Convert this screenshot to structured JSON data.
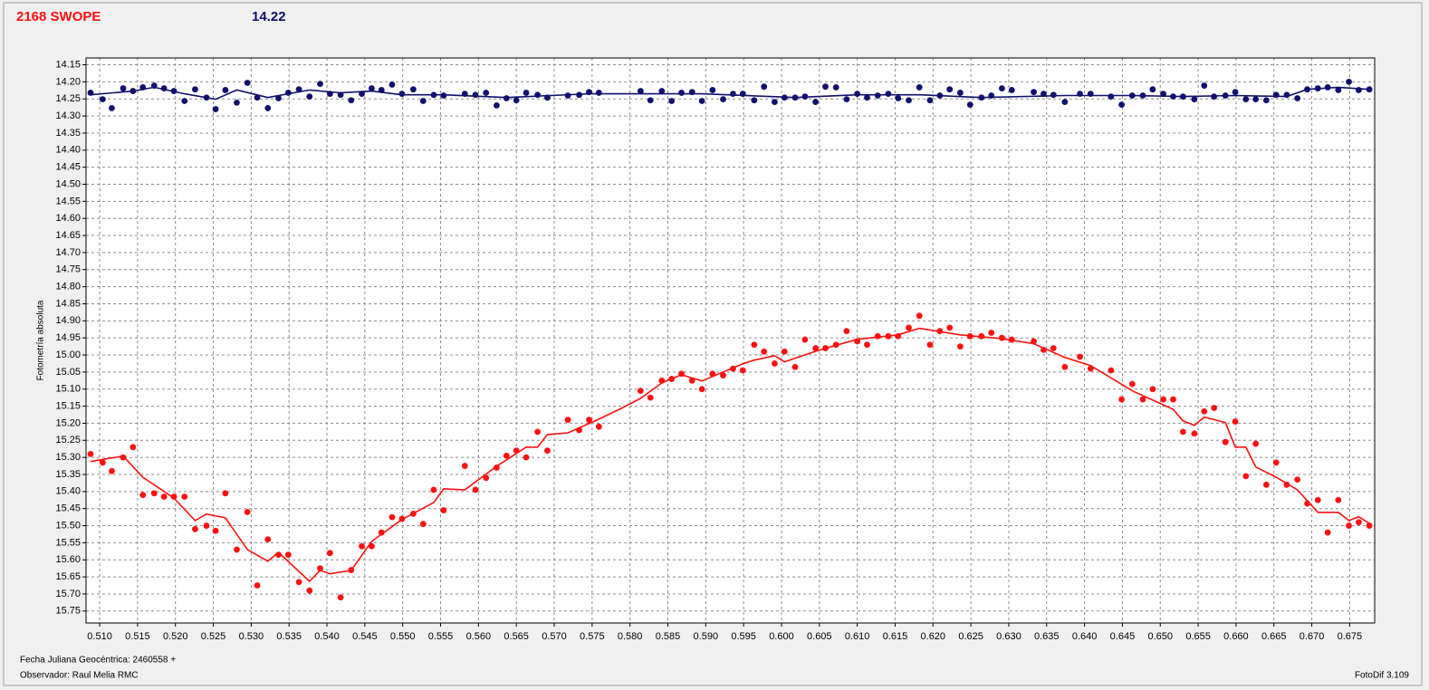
{
  "chart_data": {
    "type": "scatter",
    "title": "2168 SWOPE",
    "header_value": 14.22,
    "y_label": "Fotometría absoluta",
    "x_label": "Fecha Juliana Geocéntrica: 2460558 +",
    "observer": "Observador: Raul Melia RMC",
    "software": "FotoDif 3.109",
    "grid": true,
    "xlim": [
      0.5082,
      0.6783
    ],
    "ylim": [
      15.785,
      14.13
    ],
    "xticks": [
      {
        "value": 0.51,
        "label": "0.510"
      },
      0.515,
      {
        "value": 0.52,
        "label": "0.520"
      },
      0.525,
      {
        "value": 0.53,
        "label": "0.530"
      },
      0.535,
      {
        "value": 0.54,
        "label": "0.540"
      },
      0.545,
      {
        "value": 0.55,
        "label": "0.550"
      },
      0.555,
      {
        "value": 0.56,
        "label": "0.560"
      },
      0.565,
      {
        "value": 0.57,
        "label": "0.570"
      },
      0.575,
      {
        "value": 0.58,
        "label": "0.580"
      },
      0.585,
      {
        "value": 0.59,
        "label": "0.590"
      },
      0.595,
      {
        "value": 0.6,
        "label": "0.600"
      },
      0.605,
      {
        "value": 0.61,
        "label": "0.610"
      },
      0.615,
      {
        "value": 0.62,
        "label": "0.620"
      },
      0.625,
      {
        "value": 0.63,
        "label": "0.630"
      },
      0.635,
      {
        "value": 0.64,
        "label": "0.640"
      },
      0.645,
      {
        "value": 0.65,
        "label": "0.650"
      },
      0.655,
      {
        "value": 0.66,
        "label": "0.660"
      },
      0.665,
      {
        "value": 0.67,
        "label": "0.670"
      },
      0.675
    ],
    "yticks": [
      14.15,
      {
        "value": 14.2,
        "label": "14.20"
      },
      14.25,
      {
        "value": 14.3,
        "label": "14.30"
      },
      14.35,
      {
        "value": 14.4,
        "label": "14.40"
      },
      14.45,
      {
        "value": 14.5,
        "label": "14.50"
      },
      14.55,
      {
        "value": 14.6,
        "label": "14.60"
      },
      14.65,
      {
        "value": 14.7,
        "label": "14.70"
      },
      14.75,
      {
        "value": 14.8,
        "label": "14.80"
      },
      14.85,
      {
        "value": 14.9,
        "label": "14.90"
      },
      14.95,
      {
        "value": 15,
        "label": "15.00"
      },
      15.05,
      {
        "value": 15.1,
        "label": "15.10"
      },
      15.15,
      {
        "value": 15.2,
        "label": "15.20"
      },
      15.25,
      {
        "value": 15.3,
        "label": "15.30"
      },
      15.35,
      {
        "value": 15.4,
        "label": "15.40"
      },
      15.45,
      {
        "value": 15.5,
        "label": "15.50"
      },
      15.55,
      {
        "value": 15.6,
        "label": "15.60"
      },
      15.65,
      {
        "value": 15.7,
        "label": "15.70"
      },
      15.75
    ],
    "x": [
      0.5088,
      0.5104,
      0.5116,
      0.5131,
      0.5144,
      0.5157,
      0.5172,
      0.5185,
      0.5198,
      0.5212,
      0.5226,
      0.5241,
      0.5253,
      0.5266,
      0.5281,
      0.5295,
      0.5308,
      0.5322,
      0.5336,
      0.5349,
      0.5363,
      0.5377,
      0.5391,
      0.5404,
      0.5418,
      0.5432,
      0.5446,
      0.5459,
      0.5472,
      0.5486,
      0.5499,
      0.5514,
      0.5527,
      0.5541,
      0.5554,
      0.5582,
      0.5596,
      0.561,
      0.5624,
      0.5637,
      0.565,
      0.5663,
      0.5678,
      0.5691,
      0.5718,
      0.5733,
      0.5746,
      0.5759,
      0.5814,
      0.5827,
      0.5842,
      0.5855,
      0.5868,
      0.5882,
      0.5895,
      0.5909,
      0.5923,
      0.5936,
      0.5949,
      0.5964,
      0.5977,
      0.5991,
      0.6004,
      0.6018,
      0.6031,
      0.6045,
      0.6058,
      0.6072,
      0.6086,
      0.61,
      0.6113,
      0.6127,
      0.6141,
      0.6154,
      0.6168,
      0.6182,
      0.6196,
      0.6209,
      0.6222,
      0.6236,
      0.6249,
      0.6264,
      0.6277,
      0.6291,
      0.6304,
      0.6333,
      0.6346,
      0.6359,
      0.6374,
      0.6394,
      0.6408,
      0.6435,
      0.6449,
      0.6463,
      0.6477,
      0.649,
      0.6504,
      0.6517,
      0.653,
      0.6545,
      0.6558,
      0.6571,
      0.6586,
      0.6599,
      0.6613,
      0.6626,
      0.664,
      0.6653,
      0.6667,
      0.6681,
      0.6694,
      0.6708,
      0.6721,
      0.6735,
      0.6749,
      0.6762,
      0.6776
    ],
    "series": [
      {
        "style": "points",
        "color": "#10106e",
        "values": [
          14.232,
          14.251,
          14.277,
          14.219,
          14.227,
          14.216,
          14.211,
          14.219,
          14.227,
          14.256,
          14.222,
          14.246,
          14.28,
          14.224,
          14.261,
          14.203,
          14.246,
          14.277,
          14.248,
          14.232,
          14.222,
          14.243,
          14.206,
          14.235,
          14.238,
          14.254,
          14.235,
          14.219,
          14.224,
          14.208,
          14.235,
          14.222,
          14.256,
          14.238,
          14.24,
          14.235,
          14.238,
          14.232,
          14.269,
          14.248,
          14.254,
          14.232,
          14.238,
          14.246,
          14.24,
          14.238,
          14.23,
          14.232,
          14.227,
          14.254,
          14.227,
          14.256,
          14.232,
          14.23,
          14.256,
          14.224,
          14.251,
          14.235,
          14.235,
          14.254,
          14.214,
          14.259,
          14.246,
          14.246,
          14.243,
          14.259,
          14.214,
          14.216,
          14.251,
          14.235,
          14.246,
          14.24,
          14.235,
          14.248,
          14.254,
          14.216,
          14.254,
          14.24,
          14.222,
          14.232,
          14.267,
          14.246,
          14.24,
          14.219,
          14.224,
          14.23,
          14.235,
          14.238,
          14.259,
          14.235,
          14.235,
          14.243,
          14.267,
          14.24,
          14.24,
          14.222,
          14.235,
          14.243,
          14.243,
          14.251,
          14.211,
          14.243,
          14.24,
          14.23,
          14.251,
          14.251,
          14.254,
          14.238,
          14.238,
          14.248,
          14.222,
          14.219,
          14.216,
          14.224,
          14.2,
          14.224,
          14.222
        ]
      },
      {
        "style": "line",
        "color": "#10106e",
        "x": [
          0.5088,
          0.5144,
          0.5172,
          0.5212,
          0.5253,
          0.5281,
          0.5322,
          0.5377,
          0.5418,
          0.5459,
          0.5499,
          0.5554,
          0.5637,
          0.5746,
          0.5895,
          0.6018,
          0.61,
          0.6182,
          0.6264,
          0.6374,
          0.6463,
          0.653,
          0.6599,
          0.6667,
          0.6694,
          0.6735,
          0.6776
        ],
        "values": [
          14.238,
          14.227,
          14.216,
          14.235,
          14.251,
          14.224,
          14.246,
          14.224,
          14.232,
          14.227,
          14.238,
          14.238,
          14.246,
          14.235,
          14.235,
          14.246,
          14.238,
          14.238,
          14.246,
          14.24,
          14.24,
          14.243,
          14.24,
          14.243,
          14.222,
          14.216,
          14.222
        ]
      },
      {
        "style": "points",
        "color": "#ff1010",
        "values": [
          15.29,
          15.315,
          15.34,
          15.3,
          15.27,
          15.41,
          15.405,
          15.415,
          15.415,
          15.415,
          15.51,
          15.5,
          15.515,
          15.405,
          15.57,
          15.46,
          15.675,
          15.54,
          15.585,
          15.585,
          15.665,
          15.69,
          15.625,
          15.58,
          15.71,
          15.63,
          15.56,
          15.56,
          15.52,
          15.475,
          15.48,
          15.465,
          15.495,
          15.395,
          15.455,
          15.325,
          15.395,
          15.36,
          15.33,
          15.295,
          15.28,
          15.3,
          15.225,
          15.28,
          15.19,
          15.22,
          15.19,
          15.21,
          15.105,
          15.125,
          15.075,
          15.07,
          15.055,
          15.075,
          15.1,
          15.055,
          15.06,
          15.04,
          15.045,
          14.97,
          14.99,
          15.025,
          14.99,
          15.035,
          14.955,
          14.98,
          14.98,
          14.97,
          14.93,
          14.96,
          14.97,
          14.945,
          14.945,
          14.945,
          14.92,
          14.885,
          14.97,
          14.93,
          14.92,
          14.975,
          14.945,
          14.945,
          14.935,
          14.95,
          14.955,
          14.96,
          14.985,
          14.98,
          15.035,
          15.005,
          15.04,
          15.045,
          15.13,
          15.085,
          15.13,
          15.1,
          15.13,
          15.13,
          15.225,
          15.23,
          15.165,
          15.155,
          15.255,
          15.195,
          15.355,
          15.26,
          15.38,
          15.315,
          15.38,
          15.365,
          15.435,
          15.425,
          15.52,
          15.425,
          15.5,
          15.49,
          15.5
        ]
      },
      {
        "style": "line",
        "color": "#ff1010",
        "x": [
          0.5088,
          0.5131,
          0.5157,
          0.5198,
          0.5226,
          0.5241,
          0.5266,
          0.5295,
          0.5322,
          0.5336,
          0.5377,
          0.5391,
          0.5404,
          0.5432,
          0.5459,
          0.5499,
          0.5541,
          0.5554,
          0.5582,
          0.5624,
          0.5663,
          0.5678,
          0.5691,
          0.5718,
          0.5759,
          0.5787,
          0.5814,
          0.5842,
          0.5868,
          0.5895,
          0.5949,
          0.5964,
          0.5991,
          0.6004,
          0.6045,
          0.61,
          0.6154,
          0.6182,
          0.6236,
          0.6291,
          0.6333,
          0.6374,
          0.6408,
          0.6463,
          0.6517,
          0.653,
          0.6545,
          0.6558,
          0.6586,
          0.6599,
          0.6613,
          0.6626,
          0.6653,
          0.6681,
          0.6708,
          0.6735,
          0.6749,
          0.6762,
          0.6776
        ],
        "values": [
          15.312,
          15.296,
          15.358,
          15.419,
          15.485,
          15.466,
          15.477,
          15.57,
          15.604,
          15.578,
          15.663,
          15.631,
          15.641,
          15.631,
          15.546,
          15.482,
          15.432,
          15.392,
          15.395,
          15.326,
          15.27,
          15.27,
          15.233,
          15.228,
          15.188,
          15.158,
          15.127,
          15.082,
          15.058,
          15.076,
          15.026,
          15.015,
          15.002,
          15.02,
          14.989,
          14.954,
          14.941,
          14.922,
          14.941,
          14.952,
          14.967,
          15.007,
          15.031,
          15.105,
          15.159,
          15.193,
          15.206,
          15.182,
          15.198,
          15.27,
          15.27,
          15.328,
          15.358,
          15.395,
          15.461,
          15.461,
          15.485,
          15.474,
          15.493
        ]
      }
    ]
  }
}
